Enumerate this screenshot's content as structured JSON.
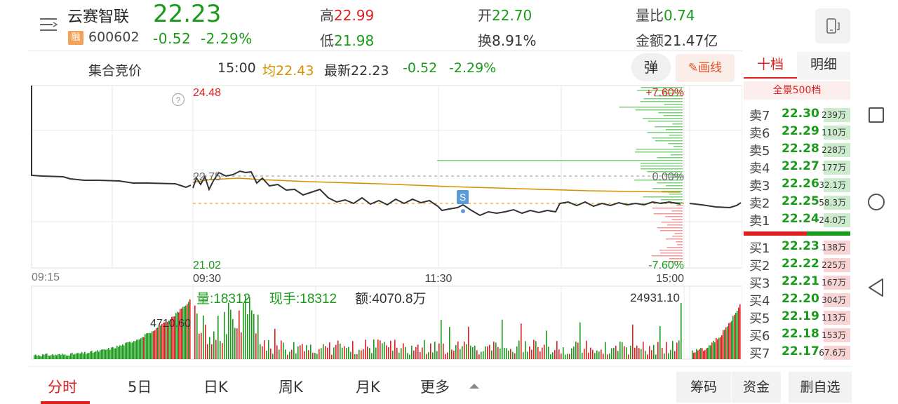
{
  "stock": {
    "name": "云赛智联",
    "badge": "融",
    "code": "600602",
    "price": "22.23",
    "change": "-0.52",
    "change_pct": "-2.29%"
  },
  "header_stats": {
    "high_label": "高",
    "high_value": "22.99",
    "low_label": "低",
    "low_value": "21.98",
    "open_label": "开",
    "open_value": "22.70",
    "turnover_label": "换",
    "turnover_value": "8.91%",
    "vol_ratio_label": "量比",
    "vol_ratio_value": "0.74",
    "amount_label": "金额",
    "amount_value": "21.47亿"
  },
  "info_bar": {
    "auction_label": "集合竞价",
    "time": "15:00",
    "avg_label": "均",
    "avg_value": "22.43",
    "latest_label": "最新",
    "latest_value": "22.23",
    "change": "-0.52",
    "change_pct": "-2.29%",
    "tan_label": "弹",
    "draw_label": "画线"
  },
  "chart": {
    "price_top": "24.48",
    "price_mid": "22.75",
    "price_bottom": "21.02",
    "pct_top": "+7.60%",
    "pct_mid": "0.00%",
    "pct_bottom": "-7.60%",
    "time_auction": "09:15",
    "time_open": "09:30",
    "time_mid": "11:30",
    "time_close": "15:00",
    "help": "?",
    "marker_label": "S",
    "vol_label": "量:18312",
    "hand_label": "现手:18312",
    "amount_label": "额:4070.8万",
    "vol_max": "24931.10",
    "auction_vol": "4710.60"
  },
  "order_book": {
    "tab_ten": "十档",
    "tab_detail": "明细",
    "full_label": "全景500档",
    "sells": [
      {
        "label": "卖7",
        "price": "22.30",
        "vol": "239万"
      },
      {
        "label": "卖6",
        "price": "22.29",
        "vol": "110万"
      },
      {
        "label": "卖5",
        "price": "22.28",
        "vol": "228万"
      },
      {
        "label": "卖4",
        "price": "22.27",
        "vol": "177万"
      },
      {
        "label": "卖3",
        "price": "22.26",
        "vol": "32.1万"
      },
      {
        "label": "卖2",
        "price": "22.25",
        "vol": "58.3万"
      },
      {
        "label": "卖1",
        "price": "22.24",
        "vol": "24.0万"
      }
    ],
    "buys": [
      {
        "label": "买1",
        "price": "22.23",
        "vol": "138万"
      },
      {
        "label": "买2",
        "price": "22.22",
        "vol": "225万"
      },
      {
        "label": "买3",
        "price": "22.21",
        "vol": "167万"
      },
      {
        "label": "买4",
        "price": "22.20",
        "vol": "304万"
      },
      {
        "label": "买5",
        "price": "22.19",
        "vol": "113万"
      },
      {
        "label": "买6",
        "price": "22.18",
        "vol": "153万"
      },
      {
        "label": "买7",
        "price": "22.17",
        "vol": "67.6万"
      }
    ]
  },
  "bottom_tabs": [
    "分时",
    "5日",
    "日K",
    "周K",
    "月K",
    "更多"
  ],
  "bottom_buttons": [
    "筹码",
    "资金",
    "删自选"
  ],
  "colors": {
    "up": "#e02020",
    "down": "#1a9a1a",
    "avg": "#d89000"
  }
}
